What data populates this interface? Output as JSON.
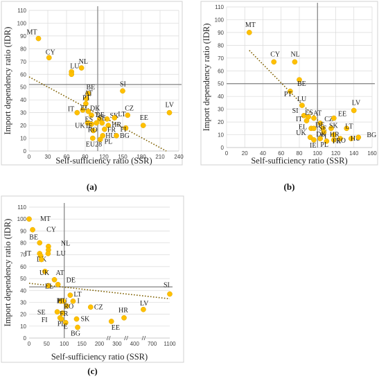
{
  "chart_data": [
    {
      "type": "scatter",
      "panel_label": "(a)",
      "xlabel": "Self-sufficiency ratio (SSR)",
      "ylabel": "Import dependency ratio (IDR)",
      "xlim": [
        0,
        240
      ],
      "ylim": [
        0,
        110
      ],
      "xticks": [
        0,
        30,
        60,
        90,
        120,
        150,
        180,
        210,
        240
      ],
      "yticks": [
        0,
        10,
        20,
        30,
        40,
        50,
        60,
        70,
        80,
        90,
        100,
        110
      ],
      "ref_x": 110,
      "ref_y": 52,
      "trend": [
        [
          0,
          58
        ],
        [
          220,
          0
        ]
      ],
      "grid": true,
      "points": [
        {
          "label": "MT",
          "x": 15,
          "y": 88
        },
        {
          "label": "CY",
          "x": 32,
          "y": 73
        },
        {
          "label": "NL",
          "x": 84,
          "y": 65
        },
        {
          "label": "LU",
          "x": 68,
          "y": 62
        },
        {
          "label": "",
          "x": 68,
          "y": 60
        },
        {
          "label": "BE",
          "x": 95,
          "y": 45
        },
        {
          "label": "AT",
          "x": 92,
          "y": 41
        },
        {
          "label": "PT",
          "x": 91,
          "y": 37
        },
        {
          "label": "IT",
          "x": 77,
          "y": 30
        },
        {
          "label": "EL",
          "x": 86,
          "y": 32
        },
        {
          "label": "",
          "x": 95,
          "y": 31
        },
        {
          "label": "DK",
          "x": 100,
          "y": 28
        },
        {
          "label": "DE",
          "x": 113,
          "y": 25
        },
        {
          "label": "SK",
          "x": 125,
          "y": 25
        },
        {
          "label": "LT",
          "x": 137,
          "y": 26
        },
        {
          "label": "SI",
          "x": 150,
          "y": 47
        },
        {
          "label": "CZ",
          "x": 158,
          "y": 28
        },
        {
          "label": "UK",
          "x": 94,
          "y": 22
        },
        {
          "label": "IE",
          "x": 100,
          "y": 21
        },
        {
          "label": "ES",
          "x": 108,
          "y": 22
        },
        {
          "label": "SE",
          "x": 117,
          "y": 22
        },
        {
          "label": "HR",
          "x": 127,
          "y": 20
        },
        {
          "label": "RO",
          "x": 103,
          "y": 16
        },
        {
          "label": "FR",
          "x": 121,
          "y": 17
        },
        {
          "label": "HU",
          "x": 118,
          "y": 12
        },
        {
          "label": "PL",
          "x": 114,
          "y": 9
        },
        {
          "label": "BG",
          "x": 140,
          "y": 12
        },
        {
          "label": "EU28",
          "x": 102,
          "y": 10
        },
        {
          "label": "FI",
          "x": 155,
          "y": 18
        },
        {
          "label": "EE",
          "x": 183,
          "y": 20
        },
        {
          "label": "LV",
          "x": 225,
          "y": 30
        }
      ]
    },
    {
      "type": "scatter",
      "panel_label": "(b)",
      "xlabel": "Self-sufficiency ratio (SSR)",
      "ylabel": "Import dependency ratio (IDR)",
      "xlim": [
        0,
        160
      ],
      "ylim": [
        0,
        110
      ],
      "xticks": [
        0,
        20,
        40,
        60,
        80,
        100,
        120,
        140,
        160
      ],
      "yticks": [
        0,
        10,
        20,
        30,
        40,
        50,
        60,
        70,
        80,
        90,
        100,
        110
      ],
      "ref_x": 100,
      "ref_y": 50,
      "trend": [
        [
          25,
          76
        ],
        [
          105,
          18
        ]
      ],
      "grid": true,
      "points": [
        {
          "label": "MT",
          "x": 25,
          "y": 90
        },
        {
          "label": "CY",
          "x": 52,
          "y": 67
        },
        {
          "label": "NL",
          "x": 75,
          "y": 67
        },
        {
          "label": "BE",
          "x": 80,
          "y": 53
        },
        {
          "label": "PT",
          "x": 70,
          "y": 44
        },
        {
          "label": "LU",
          "x": 83,
          "y": 33
        },
        {
          "label": "SI",
          "x": 85,
          "y": 25
        },
        {
          "label": "ES",
          "x": 90,
          "y": 24
        },
        {
          "label": "AT",
          "x": 96,
          "y": 23
        },
        {
          "label": "IT",
          "x": 88,
          "y": 21
        },
        {
          "label": "CZ",
          "x": 103,
          "y": 19
        },
        {
          "label": "EE",
          "x": 118,
          "y": 23
        },
        {
          "label": "LV",
          "x": 140,
          "y": 29
        },
        {
          "label": "EL",
          "x": 93,
          "y": 15
        },
        {
          "label": "DE",
          "x": 96,
          "y": 15
        },
        {
          "label": "SE",
          "x": 106,
          "y": 15
        },
        {
          "label": "SK",
          "x": 115,
          "y": 15
        },
        {
          "label": "FI",
          "x": 107,
          "y": 12
        },
        {
          "label": "LT",
          "x": 132,
          "y": 15
        },
        {
          "label": "HR",
          "x": 118,
          "y": 10
        },
        {
          "label": "UK",
          "x": 92,
          "y": 8
        },
        {
          "label": "DK",
          "x": 103,
          "y": 7
        },
        {
          "label": "IE",
          "x": 96,
          "y": 6
        },
        {
          "label": "PL",
          "x": 110,
          "y": 5
        },
        {
          "label": "FR",
          "x": 118,
          "y": 6
        },
        {
          "label": "RO",
          "x": 125,
          "y": 7
        },
        {
          "label": "HU",
          "x": 137,
          "y": 7
        },
        {
          "label": "BG",
          "x": 145,
          "y": 8
        }
      ]
    },
    {
      "type": "scatter",
      "panel_label": "(c)",
      "xlabel": "Self-sufficiency ratio (SSR)",
      "ylabel": "Import dependency ratio (IDR)",
      "x_tick_labels": [
        "0",
        "50",
        "100",
        "150",
        "200",
        "300",
        "400",
        "700",
        "1100"
      ],
      "ylim": [
        0,
        110
      ],
      "yticks": [
        0,
        10,
        20,
        30,
        40,
        50,
        60,
        70,
        80,
        90,
        100,
        110
      ],
      "x_axis_breaks": true,
      "ref_x": 100,
      "ref_y": 43,
      "grid": true,
      "points": [
        {
          "label": "MT",
          "x": 0,
          "y": 100
        },
        {
          "label": "CY",
          "x": 10,
          "y": 91
        },
        {
          "label": "BE",
          "x": 30,
          "y": 80
        },
        {
          "label": "NL",
          "x": 55,
          "y": 77
        },
        {
          "label": "",
          "x": 55,
          "y": 74
        },
        {
          "label": "LU",
          "x": 54,
          "y": 71
        },
        {
          "label": "IT",
          "x": 30,
          "y": 71
        },
        {
          "label": "DK",
          "x": 33,
          "y": 69
        },
        {
          "label": "",
          "x": 35,
          "y": 66
        },
        {
          "label": "UK",
          "x": 45,
          "y": 56
        },
        {
          "label": "AT",
          "x": 72,
          "y": 49
        },
        {
          "label": "EL",
          "x": 55,
          "y": 44
        },
        {
          "label": "DE",
          "x": 82,
          "y": 45
        },
        {
          "label": "LT",
          "x": 117,
          "y": 36
        },
        {
          "label": "I",
          "x": 125,
          "y": 31
        },
        {
          "label": "PT",
          "x": 90,
          "y": 31
        },
        {
          "label": "HU",
          "x": 98,
          "y": 31
        },
        {
          "label": "RO",
          "x": 107,
          "y": 27
        },
        {
          "label": "CZ",
          "x": 175,
          "y": 26
        },
        {
          "label": "LV",
          "x": 550,
          "y": 24
        },
        {
          "label": "SI",
          "x": 1100,
          "y": 37
        },
        {
          "label": "SE",
          "x": 80,
          "y": 22
        },
        {
          "label": "FR",
          "x": 95,
          "y": 21
        },
        {
          "label": "FI",
          "x": 88,
          "y": 17
        },
        {
          "label": "SK",
          "x": 135,
          "y": 16
        },
        {
          "label": "PL",
          "x": 92,
          "y": 16
        },
        {
          "label": "E",
          "x": 104,
          "y": 13
        },
        {
          "label": "BG",
          "x": 138,
          "y": 9
        },
        {
          "label": "HR",
          "x": 340,
          "y": 17
        },
        {
          "label": "EE",
          "x": 268,
          "y": 14
        }
      ]
    }
  ]
}
